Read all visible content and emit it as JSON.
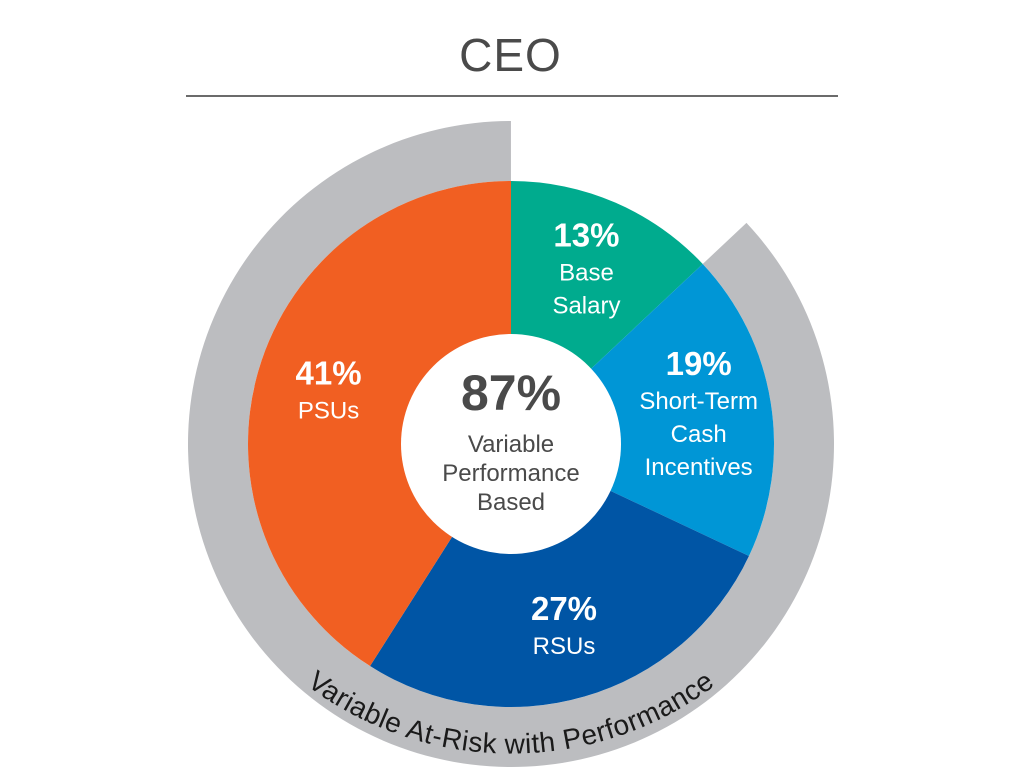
{
  "title": "CEO",
  "chart_data": {
    "type": "pie",
    "title": "CEO",
    "slices": [
      {
        "key": "base",
        "label": "Base Salary",
        "label_lines": [
          "Base",
          "Salary"
        ],
        "value": 13,
        "value_text": "13%",
        "color": "#00ab8e"
      },
      {
        "key": "sti",
        "label": "Short-Term Cash Incentives",
        "label_lines": [
          "Short-Term",
          "Cash",
          "Incentives"
        ],
        "value": 19,
        "value_text": "19%",
        "color": "#0096d6"
      },
      {
        "key": "rsu",
        "label": "RSUs",
        "label_lines": [
          "RSUs"
        ],
        "value": 27,
        "value_text": "27%",
        "color": "#0055a5"
      },
      {
        "key": "psu",
        "label": "PSUs",
        "label_lines": [
          "PSUs"
        ],
        "value": 41,
        "value_text": "41%",
        "color": "#f15f22"
      }
    ],
    "center": {
      "value": 87,
      "value_text": "87%",
      "label_lines": [
        "Variable",
        "Performance",
        "Based"
      ]
    },
    "outer_band": {
      "label": "Variable At-Risk with Performance",
      "value": 87,
      "color": "#bcbdc0"
    }
  }
}
